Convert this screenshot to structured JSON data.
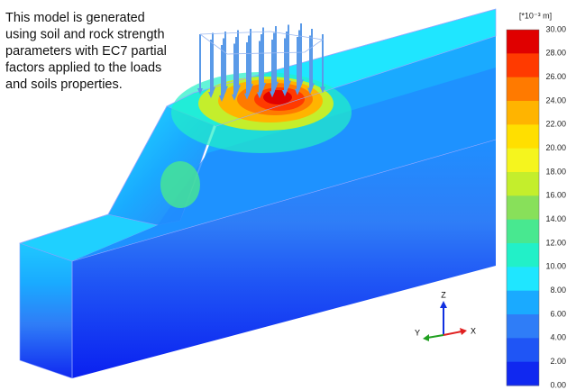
{
  "annotation": [
    "This model is generated",
    "using soil and rock strength",
    "parameters with EC7 partial",
    "factors applied to the loads",
    "and soils properties."
  ],
  "legend": {
    "unit": "[*10⁻³ m]",
    "labels": [
      "30.00",
      "28.00",
      "26.00",
      "24.00",
      "22.00",
      "20.00",
      "18.00",
      "16.00",
      "14.00",
      "12.00",
      "10.00",
      "8.00",
      "6.00",
      "4.00",
      "2.00",
      "0.00"
    ],
    "colors": [
      "#e00000",
      "#ff3a00",
      "#ff7a00",
      "#ffb400",
      "#ffdf00",
      "#f5f51e",
      "#c4ee2c",
      "#88e05a",
      "#48e890",
      "#22f0c8",
      "#1fe6ff",
      "#1aaaff",
      "#2f7df7",
      "#1f55f5",
      "#1028f0"
    ]
  },
  "axes": {
    "z": "Z",
    "y": "Y",
    "x": "X"
  }
}
